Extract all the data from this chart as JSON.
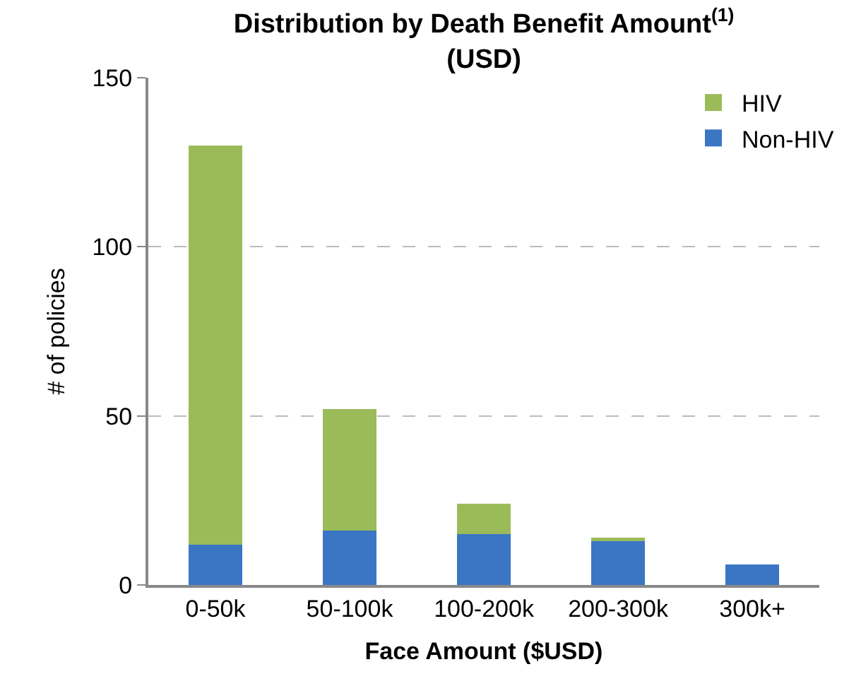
{
  "chart_data": {
    "type": "bar",
    "title": "Distribution by Death Benefit Amount$^{(1)}$ (USD)",
    "xlabel": "Face Amount ($USD)",
    "ylabel": "# of policies",
    "categories": [
      "0-50k",
      "50-100k",
      "100-200k",
      "200-300k",
      "300k+"
    ],
    "series": [
      {
        "name": "Non-HIV",
        "color": "#3a76c4",
        "values": [
          12,
          16,
          15,
          13,
          6
        ]
      },
      {
        "name": "HIV",
        "color": "#9bbb59",
        "values": [
          118,
          36,
          9,
          1,
          0
        ]
      }
    ],
    "stacked": true,
    "ylim": [
      0,
      150
    ],
    "yticks": [
      0,
      50,
      100,
      150
    ],
    "grid": "y",
    "legend": "top right"
  }
}
